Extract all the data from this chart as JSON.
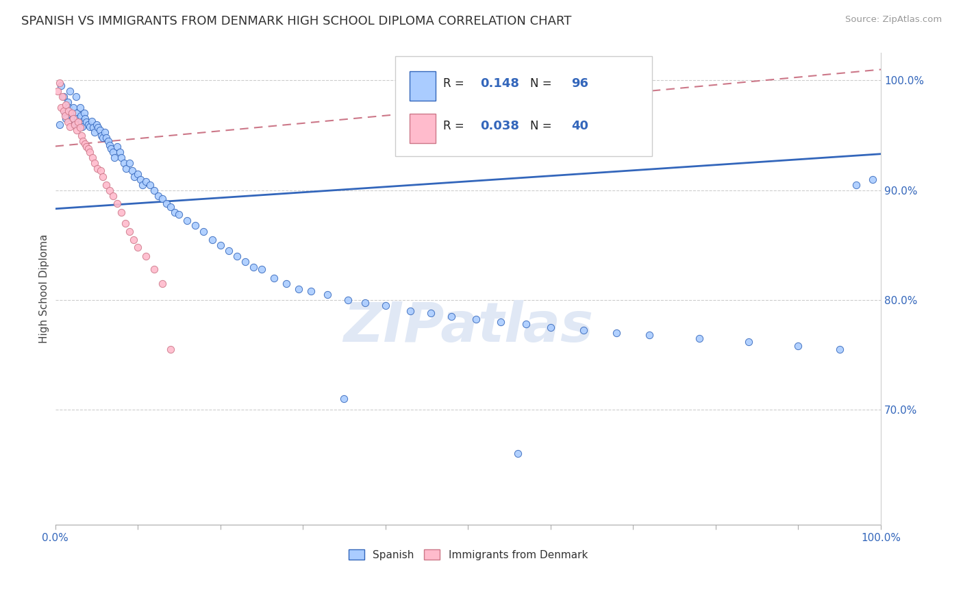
{
  "title": "SPANISH VS IMMIGRANTS FROM DENMARK HIGH SCHOOL DIPLOMA CORRELATION CHART",
  "source": "Source: ZipAtlas.com",
  "ylabel": "High School Diploma",
  "xlim": [
    0.0,
    1.0
  ],
  "ylim": [
    0.595,
    1.025
  ],
  "yticks_right": [
    0.7,
    0.8,
    0.9,
    1.0
  ],
  "ytick_right_labels": [
    "70.0%",
    "80.0%",
    "90.0%",
    "100.0%"
  ],
  "legend_R1": "0.148",
  "legend_N1": "96",
  "legend_R2": "0.038",
  "legend_N2": "40",
  "color_spanish": "#aaccff",
  "color_denmark": "#ffbbcc",
  "color_line_spanish": "#3366bb",
  "color_line_denmark": "#cc7788",
  "marker_size": 55,
  "spanish_x": [
    0.005,
    0.007,
    0.01,
    0.012,
    0.013,
    0.015,
    0.016,
    0.018,
    0.02,
    0.021,
    0.022,
    0.023,
    0.025,
    0.026,
    0.027,
    0.028,
    0.03,
    0.031,
    0.032,
    0.033,
    0.035,
    0.036,
    0.038,
    0.04,
    0.042,
    0.044,
    0.046,
    0.048,
    0.05,
    0.052,
    0.054,
    0.056,
    0.058,
    0.06,
    0.062,
    0.064,
    0.066,
    0.068,
    0.07,
    0.072,
    0.075,
    0.078,
    0.08,
    0.083,
    0.086,
    0.09,
    0.093,
    0.096,
    0.1,
    0.103,
    0.106,
    0.11,
    0.115,
    0.12,
    0.125,
    0.13,
    0.135,
    0.14,
    0.145,
    0.15,
    0.16,
    0.17,
    0.18,
    0.19,
    0.2,
    0.21,
    0.22,
    0.23,
    0.24,
    0.25,
    0.265,
    0.28,
    0.295,
    0.31,
    0.33,
    0.355,
    0.375,
    0.4,
    0.43,
    0.455,
    0.48,
    0.51,
    0.54,
    0.57,
    0.6,
    0.64,
    0.68,
    0.72,
    0.78,
    0.84,
    0.9,
    0.95,
    0.97,
    0.99,
    0.35,
    0.56
  ],
  "spanish_y": [
    0.96,
    0.995,
    0.985,
    0.97,
    0.965,
    0.98,
    0.975,
    0.99,
    0.97,
    0.965,
    0.975,
    0.96,
    0.985,
    0.97,
    0.965,
    0.96,
    0.975,
    0.968,
    0.962,
    0.958,
    0.97,
    0.965,
    0.962,
    0.96,
    0.958,
    0.963,
    0.957,
    0.953,
    0.96,
    0.957,
    0.955,
    0.95,
    0.948,
    0.953,
    0.948,
    0.945,
    0.941,
    0.938,
    0.935,
    0.93,
    0.94,
    0.935,
    0.93,
    0.925,
    0.92,
    0.925,
    0.918,
    0.912,
    0.915,
    0.91,
    0.905,
    0.908,
    0.905,
    0.9,
    0.895,
    0.892,
    0.888,
    0.885,
    0.88,
    0.878,
    0.872,
    0.868,
    0.862,
    0.855,
    0.85,
    0.845,
    0.84,
    0.835,
    0.83,
    0.828,
    0.82,
    0.815,
    0.81,
    0.808,
    0.805,
    0.8,
    0.797,
    0.795,
    0.79,
    0.788,
    0.785,
    0.782,
    0.78,
    0.778,
    0.775,
    0.772,
    0.77,
    0.768,
    0.765,
    0.762,
    0.758,
    0.755,
    0.905,
    0.91,
    0.71,
    0.66
  ],
  "denmark_x": [
    0.003,
    0.005,
    0.007,
    0.009,
    0.01,
    0.012,
    0.013,
    0.015,
    0.016,
    0.018,
    0.02,
    0.022,
    0.024,
    0.026,
    0.028,
    0.03,
    0.032,
    0.034,
    0.036,
    0.038,
    0.04,
    0.042,
    0.045,
    0.048,
    0.051,
    0.055,
    0.058,
    0.062,
    0.066,
    0.07,
    0.075,
    0.08,
    0.085,
    0.09,
    0.095,
    0.1,
    0.11,
    0.12,
    0.13,
    0.14
  ],
  "denmark_y": [
    0.99,
    0.998,
    0.975,
    0.985,
    0.972,
    0.968,
    0.978,
    0.962,
    0.972,
    0.958,
    0.97,
    0.965,
    0.96,
    0.955,
    0.962,
    0.957,
    0.95,
    0.945,
    0.942,
    0.94,
    0.938,
    0.935,
    0.93,
    0.925,
    0.92,
    0.918,
    0.912,
    0.905,
    0.9,
    0.895,
    0.888,
    0.88,
    0.87,
    0.862,
    0.855,
    0.848,
    0.84,
    0.828,
    0.815,
    0.755
  ],
  "trendline_spanish_x0": 0.0,
  "trendline_spanish_y0": 0.883,
  "trendline_spanish_x1": 1.0,
  "trendline_spanish_y1": 0.933,
  "trendline_denmark_x0": 0.0,
  "trendline_denmark_y0": 0.94,
  "trendline_denmark_x1": 1.0,
  "trendline_denmark_y1": 1.01
}
